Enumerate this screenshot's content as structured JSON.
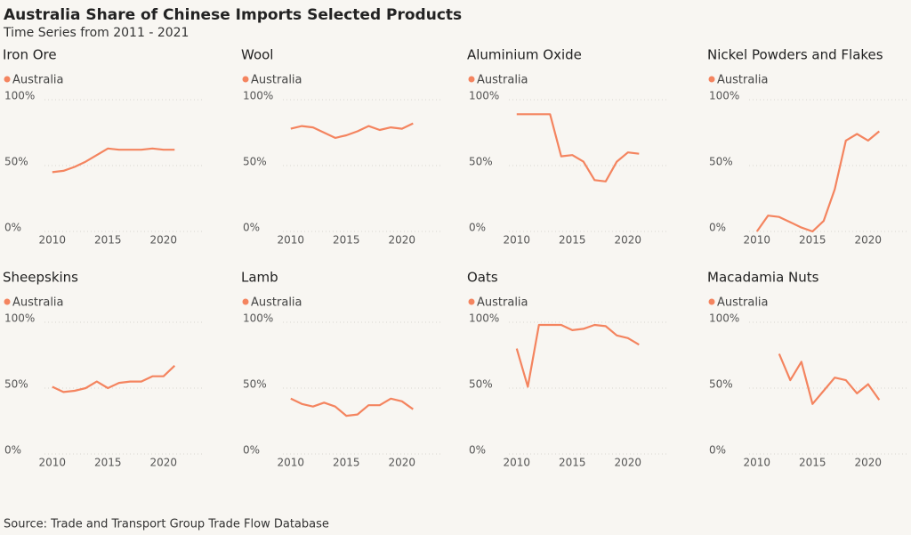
{
  "title": "Australia Share of Chinese Imports Selected Products",
  "subtitle": "Time Series from 2011 - 2021",
  "source": "Source: Trade and Transport Group Trade Flow Database",
  "chart_data": [
    {
      "type": "line",
      "title": "Iron Ore",
      "x": [
        2010,
        2011,
        2012,
        2013,
        2014,
        2015,
        2016,
        2017,
        2018,
        2019,
        2020,
        2021
      ],
      "series": [
        {
          "name": "Australia",
          "color": "#f4845f",
          "values": [
            45,
            46,
            49,
            53,
            58,
            63,
            62,
            62,
            62,
            63,
            62,
            62
          ]
        }
      ],
      "xlim": [
        2008.5,
        2022.5
      ],
      "xticks": [
        2010,
        2015,
        2020
      ],
      "ylim": [
        0,
        100
      ],
      "yticks": [
        {
          "value": 0,
          "label": "0%"
        },
        {
          "value": 50,
          "label": "50%"
        },
        {
          "value": 100,
          "label": "100%"
        }
      ],
      "grid": true
    },
    {
      "type": "line",
      "title": "Wool",
      "x": [
        2010,
        2011,
        2012,
        2013,
        2014,
        2015,
        2016,
        2017,
        2018,
        2019,
        2020,
        2021
      ],
      "series": [
        {
          "name": "Australia",
          "color": "#f4845f",
          "values": [
            78,
            80,
            79,
            75,
            71,
            73,
            76,
            80,
            77,
            79,
            78,
            82
          ]
        }
      ],
      "xlim": [
        2008.5,
        2022.5
      ],
      "xticks": [
        2010,
        2015,
        2020
      ],
      "ylim": [
        0,
        100
      ],
      "yticks": [
        {
          "value": 0,
          "label": "0%"
        },
        {
          "value": 50,
          "label": "50%"
        },
        {
          "value": 100,
          "label": "100%"
        }
      ],
      "grid": true
    },
    {
      "type": "line",
      "title": "Aluminium Oxide",
      "x": [
        2010,
        2011,
        2012,
        2013,
        2014,
        2015,
        2016,
        2017,
        2018,
        2019,
        2020,
        2021
      ],
      "series": [
        {
          "name": "Australia",
          "color": "#f4845f",
          "values": [
            89,
            89,
            89,
            89,
            57,
            58,
            53,
            39,
            38,
            53,
            60,
            59
          ]
        }
      ],
      "xlim": [
        2008.5,
        2022.5
      ],
      "xticks": [
        2010,
        2015,
        2020
      ],
      "ylim": [
        0,
        100
      ],
      "yticks": [
        {
          "value": 0,
          "label": "0%"
        },
        {
          "value": 50,
          "label": "50%"
        },
        {
          "value": 100,
          "label": "100%"
        }
      ],
      "grid": true
    },
    {
      "type": "line",
      "title": "Nickel Powders and Flakes",
      "x": [
        2010,
        2011,
        2012,
        2013,
        2014,
        2015,
        2016,
        2017,
        2018,
        2019,
        2020,
        2021
      ],
      "series": [
        {
          "name": "Australia",
          "color": "#f4845f",
          "values": [
            0,
            12,
            11,
            7,
            3,
            0,
            8,
            32,
            69,
            74,
            69,
            76
          ]
        }
      ],
      "xlim": [
        2008.5,
        2022.5
      ],
      "xticks": [
        2010,
        2015,
        2020
      ],
      "ylim": [
        0,
        100
      ],
      "yticks": [
        {
          "value": 0,
          "label": "0%"
        },
        {
          "value": 50,
          "label": "50%"
        },
        {
          "value": 100,
          "label": "100%"
        }
      ],
      "grid": true
    },
    {
      "type": "line",
      "title": "Sheepskins",
      "x": [
        2010,
        2011,
        2012,
        2013,
        2014,
        2015,
        2016,
        2017,
        2018,
        2019,
        2020,
        2021
      ],
      "series": [
        {
          "name": "Australia",
          "color": "#f4845f",
          "values": [
            51,
            47,
            48,
            50,
            55,
            50,
            54,
            55,
            55,
            59,
            59,
            67
          ]
        }
      ],
      "xlim": [
        2008.5,
        2022.5
      ],
      "xticks": [
        2010,
        2015,
        2020
      ],
      "ylim": [
        0,
        100
      ],
      "yticks": [
        {
          "value": 0,
          "label": "0%"
        },
        {
          "value": 50,
          "label": "50%"
        },
        {
          "value": 100,
          "label": "100%"
        }
      ],
      "grid": true
    },
    {
      "type": "line",
      "title": "Lamb",
      "x": [
        2010,
        2011,
        2012,
        2013,
        2014,
        2015,
        2016,
        2017,
        2018,
        2019,
        2020,
        2021
      ],
      "series": [
        {
          "name": "Australia",
          "color": "#f4845f",
          "values": [
            42,
            38,
            36,
            39,
            36,
            29,
            30,
            37,
            37,
            42,
            40,
            34
          ]
        }
      ],
      "xlim": [
        2008.5,
        2022.5
      ],
      "xticks": [
        2010,
        2015,
        2020
      ],
      "ylim": [
        0,
        100
      ],
      "yticks": [
        {
          "value": 0,
          "label": "0%"
        },
        {
          "value": 50,
          "label": "50%"
        },
        {
          "value": 100,
          "label": "100%"
        }
      ],
      "grid": true
    },
    {
      "type": "line",
      "title": "Oats",
      "x": [
        2010,
        2011,
        2012,
        2013,
        2014,
        2015,
        2016,
        2017,
        2018,
        2019,
        2020,
        2021
      ],
      "series": [
        {
          "name": "Australia",
          "color": "#f4845f",
          "values": [
            80,
            51,
            98,
            98,
            98,
            94,
            95,
            98,
            97,
            90,
            88,
            83
          ]
        }
      ],
      "xlim": [
        2008.5,
        2022.5
      ],
      "xticks": [
        2010,
        2015,
        2020
      ],
      "ylim": [
        0,
        100
      ],
      "yticks": [
        {
          "value": 0,
          "label": "0%"
        },
        {
          "value": 50,
          "label": "50%"
        },
        {
          "value": 100,
          "label": "100%"
        }
      ],
      "grid": true
    },
    {
      "type": "line",
      "title": "Macadamia Nuts",
      "x": [
        2010,
        2011,
        2012,
        2013,
        2014,
        2015,
        2016,
        2017,
        2018,
        2019,
        2020,
        2021
      ],
      "series": [
        {
          "name": "Australia",
          "color": "#f4845f",
          "values": [
            null,
            null,
            76,
            56,
            70,
            38,
            48,
            58,
            56,
            46,
            53,
            41
          ]
        }
      ],
      "xlim": [
        2008.5,
        2022.5
      ],
      "xticks": [
        2010,
        2015,
        2020
      ],
      "ylim": [
        0,
        100
      ],
      "yticks": [
        {
          "value": 0,
          "label": "0%"
        },
        {
          "value": 50,
          "label": "50%"
        },
        {
          "value": 100,
          "label": "100%"
        }
      ],
      "grid": true
    }
  ]
}
